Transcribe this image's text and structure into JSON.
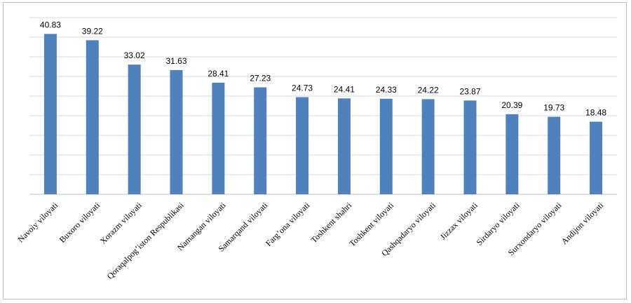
{
  "chart_data": {
    "type": "bar",
    "title": "",
    "xlabel": "",
    "ylabel": "",
    "ylim": [
      0,
      45
    ],
    "grid": true,
    "legend": "none",
    "bar_color": "#4f81bd",
    "categories": [
      "Navoiy viloyati",
      "Buxoro viloyati",
      "Xorazm viloyati",
      "Qoraqalpog’iston Respublikasi",
      "Namangan viloyati",
      "Samarqand viloyati",
      "Farg’ona viloyati",
      "Toshkent shahri",
      "Toshkent viloyati",
      "Qashqadaryo viloyati",
      "Jizzax viloyati",
      "Sirdaryo viloyati",
      "Surxondaryo viloyati",
      "Andijon viloyati"
    ],
    "values": [
      40.83,
      39.22,
      33.02,
      31.63,
      28.41,
      27.23,
      24.73,
      24.41,
      24.33,
      24.22,
      23.87,
      20.39,
      19.73,
      18.48
    ],
    "data_labels": [
      "40.83",
      "39.22",
      "33.02",
      "31.63",
      "28.41",
      "27.23",
      "24.73",
      "24.41",
      "24.33",
      "24.22",
      "23.87",
      "20.39",
      "19.73",
      "18.48"
    ]
  }
}
